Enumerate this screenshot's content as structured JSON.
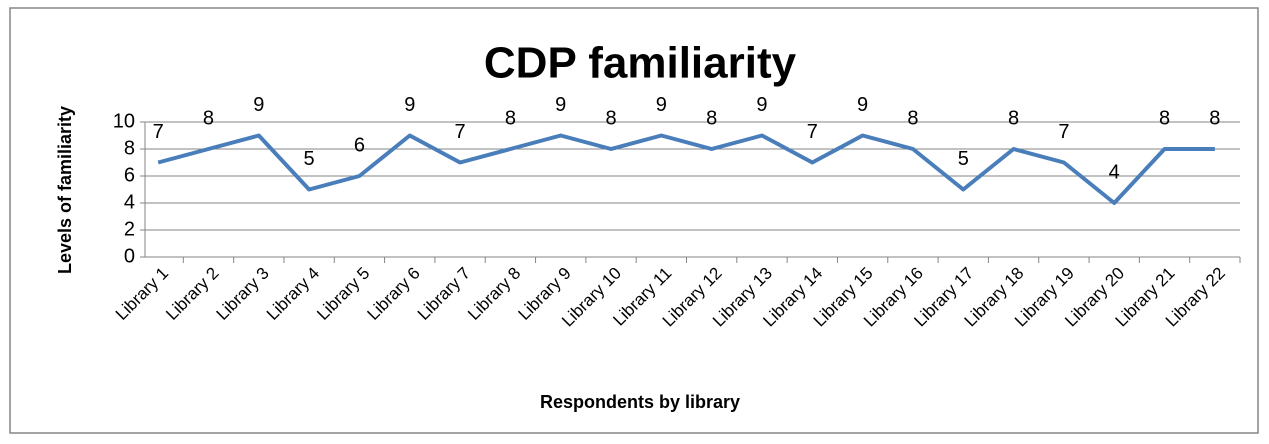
{
  "chart_data": {
    "type": "line",
    "title": "CDP familiarity",
    "x_label": "Respondents by library",
    "y_label": "Levels of familiarity",
    "categories": [
      "Library 1",
      "Library 2",
      "Library 3",
      "Library 4",
      "Library 5",
      "Library 6",
      "Library 7",
      "Library 8",
      "Library 9",
      "Library 10",
      "Library 11",
      "Library 12",
      "Library 13",
      "Library 14",
      "Library 15",
      "Library 16",
      "Library 17",
      "Library 18",
      "Library 19",
      "Library 20",
      "Library 21",
      "Library 22"
    ],
    "series": [
      {
        "name": "CDP familiarity",
        "color": "#4a7ebb",
        "values": [
          7,
          8,
          9,
          5,
          6,
          9,
          7,
          8,
          9,
          8,
          9,
          8,
          9,
          7,
          9,
          8,
          5,
          8,
          7,
          4,
          8,
          8
        ]
      }
    ],
    "ylim": [
      0,
      10
    ],
    "yticks": [
      0,
      2,
      4,
      6,
      8,
      10
    ],
    "grid": true,
    "data_labels": true
  }
}
